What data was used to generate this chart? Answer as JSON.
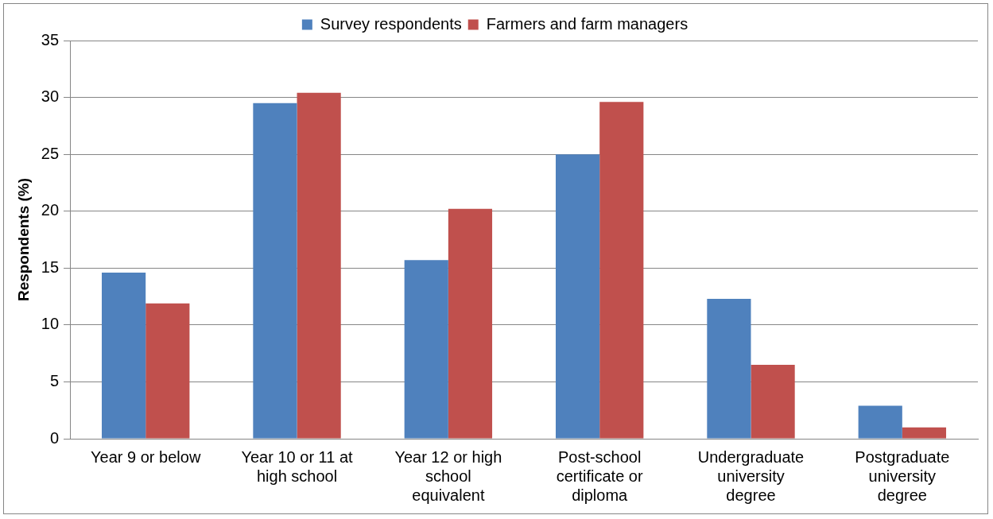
{
  "chart_data": {
    "type": "bar",
    "ylabel": "Respondents (%)",
    "categories": [
      "Year 9 or below",
      "Year 10 or 11 at high school",
      "Year 12 or high school equivalent",
      "Post-school certificate or diploma",
      "Undergraduate university degree",
      "Postgraduate university degree"
    ],
    "series": [
      {
        "name": "Survey respondents",
        "color": "#4f81bd",
        "values": [
          14.6,
          29.5,
          15.7,
          25.0,
          12.3,
          2.9
        ]
      },
      {
        "name": "Farmers and farm managers",
        "color": "#c0504d",
        "values": [
          11.9,
          30.4,
          20.2,
          29.6,
          6.5,
          1.0
        ]
      }
    ],
    "ylim": [
      0,
      35
    ],
    "yticks": [
      0,
      5,
      10,
      15,
      20,
      25,
      30,
      35
    ],
    "grid": "y",
    "legend": "top"
  }
}
